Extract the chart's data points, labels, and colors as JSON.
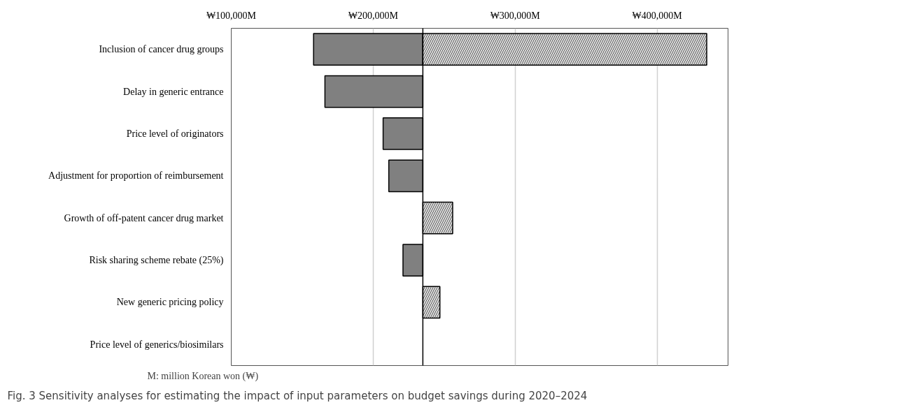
{
  "chart_data": {
    "type": "bar",
    "orientation": "horizontal",
    "title": "Fig. 3 Sensitivity analyses for estimating the impact of input parameters on budget savings during 2020–2024",
    "categories": [
      "Inclusion of cancer drug groups",
      "Delay in generic entrance",
      "Price level of originators",
      "Adjustment for proportion of reimbursement",
      "Growth of off-patent cancer drug market",
      "Risk sharing scheme rebate (25%)",
      "New generic pricing policy",
      "Price level of generics/biosimilars"
    ],
    "series": [
      {
        "color": "#808080",
        "values": [
          -77000,
          -69000,
          -28000,
          -24000,
          null,
          -14000,
          null,
          null
        ],
        "base": [
          235000,
          235000,
          235000,
          235000,
          null,
          235000,
          null,
          null
        ]
      },
      {
        "color": "#e0e0e0",
        "values": [
          200000,
          null,
          null,
          null,
          21000,
          null,
          12000,
          null
        ],
        "base": [
          235000,
          null,
          null,
          null,
          235000,
          null,
          235000,
          null
        ]
      }
    ],
    "xlim": [
      100000,
      450000
    ],
    "xticks": [
      {
        "value": 100000,
        "label": "₩100,000M"
      },
      {
        "value": 200000,
        "label": "₩200,000M"
      },
      {
        "value": 300000,
        "label": "₩300,000M"
      },
      {
        "value": 400000,
        "label": "₩400,000M"
      }
    ],
    "ref_lines": [
      {
        "axis": "x",
        "value": 235000,
        "label": null,
        "color": "#000000"
      }
    ],
    "grid": "x",
    "annotations": [
      "M: million Korean won (₩)"
    ]
  }
}
